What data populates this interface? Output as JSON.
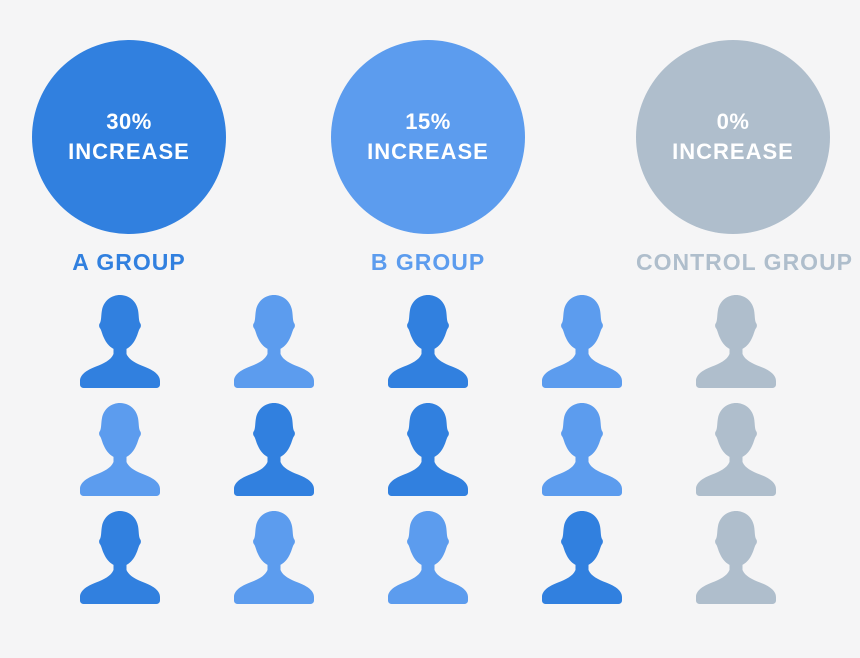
{
  "chart_data": {
    "type": "pictogram",
    "categories": [
      "A GROUP",
      "B GROUP",
      "CONTROL GROUP"
    ],
    "values": [
      30,
      15,
      0
    ],
    "value_labels": [
      "30% INCREASE",
      "15% INCREASE",
      "0% INCREASE"
    ],
    "unit": "percent increase",
    "legend_position": "none",
    "grid": false,
    "icon_counts": {
      "dark_blue_people": 6,
      "light_blue_people": 6,
      "gray_people": 3
    }
  },
  "groups": [
    {
      "value": "30%",
      "value_word": "INCREASE",
      "label": "A GROUP",
      "tone": "dark"
    },
    {
      "value": "15%",
      "value_word": "INCREASE",
      "label": "B GROUP",
      "tone": "light"
    },
    {
      "value": "0%",
      "value_word": "INCREASE",
      "label": "CONTROL GROUP",
      "tone": "gray"
    }
  ],
  "icon_grid": {
    "icon": "person-icon",
    "rows": [
      [
        "dark",
        "light",
        "dark",
        "light",
        "gray"
      ],
      [
        "light",
        "dark",
        "dark",
        "light",
        "gray"
      ],
      [
        "dark",
        "light",
        "light",
        "dark",
        "gray"
      ]
    ]
  },
  "colors": {
    "dark": "#3180DF",
    "light": "#5C9CEE",
    "gray": "#AFBECC",
    "background": "#F5F5F6",
    "circle_text": "#FFFFFF"
  }
}
